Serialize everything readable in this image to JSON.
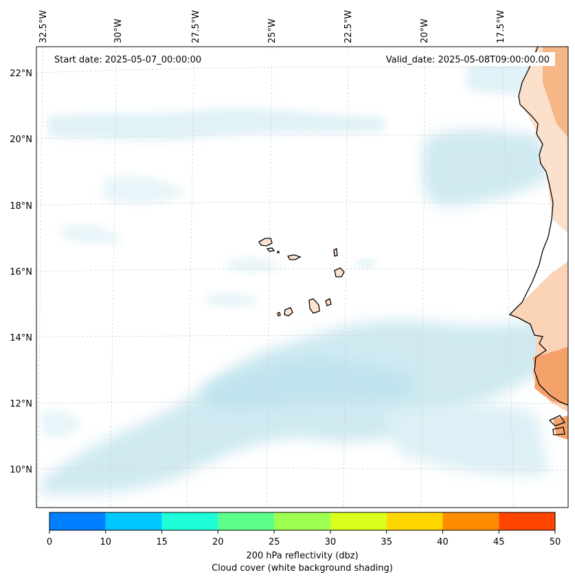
{
  "map": {
    "start_date": "Start date: 2025-05-07_00:00:00",
    "valid_date": "Valid_date: 2025-05-08T09:00:00.00",
    "lon_labels": [
      "32.5°W",
      "30°W",
      "27.5°W",
      "25°W",
      "22.5°W",
      "20°W",
      "17.5°W"
    ],
    "lat_labels": [
      "22°N",
      "20°N",
      "18°N",
      "16°N",
      "14°N",
      "12°N",
      "10°N"
    ],
    "extent": {
      "lon_min": -32.5,
      "lon_max": -15.8,
      "lat_min": 8.8,
      "lat_max": 22.8
    },
    "cloud_color": "#a9d8e6",
    "land_reflectivity_color": "#f4a26a",
    "coastline_color": "#000000"
  },
  "colorbar": {
    "ticks": [
      "0",
      "10",
      "15",
      "20",
      "25",
      "30",
      "35",
      "40",
      "45",
      "50"
    ],
    "colors": [
      "#0080ff",
      "#00c8ff",
      "#1effd8",
      "#5cff8a",
      "#9dff50",
      "#d8ff1e",
      "#ffd700",
      "#ff8c00",
      "#ff4500"
    ],
    "label_line1": "200 hPa reflectivity (dbz)",
    "label_line2": "Cloud cover (white background shading)"
  }
}
